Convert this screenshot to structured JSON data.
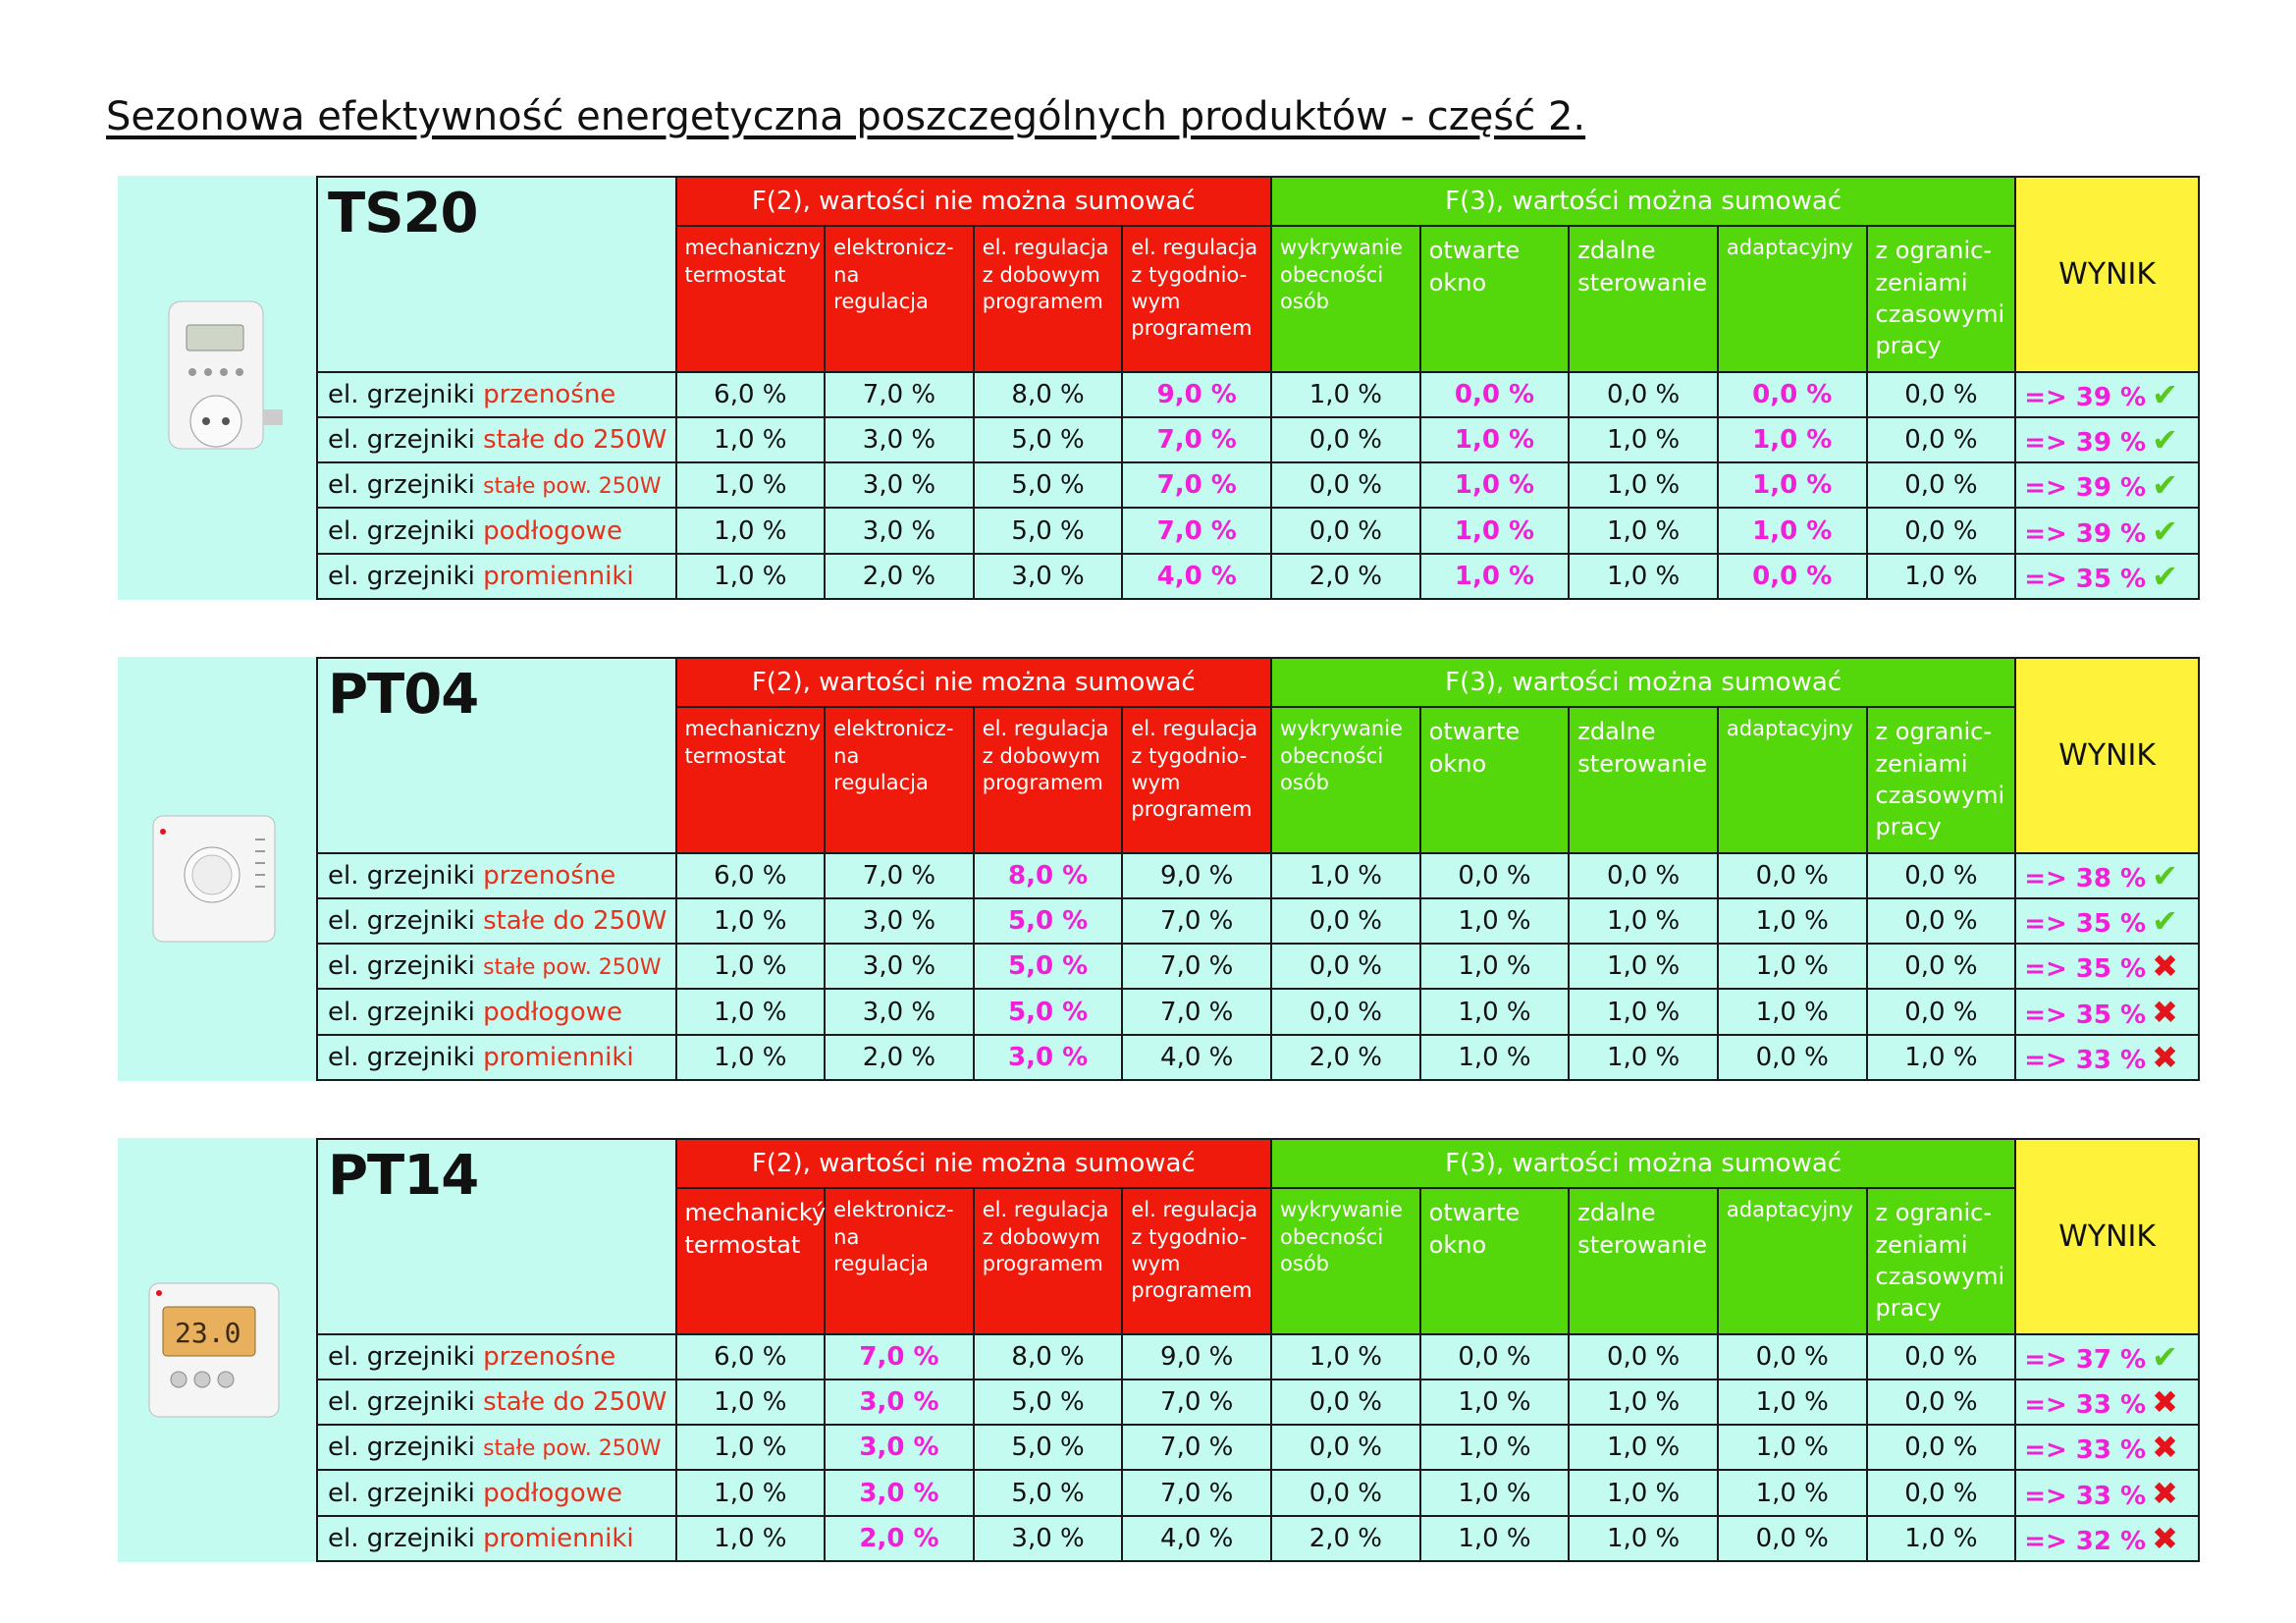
{
  "title": "Sezonowa efektywność energetyczna poszczególnych produktów - część 2.",
  "colors": {
    "f2": "#f01a0c",
    "f3": "#54d80c",
    "wynik": "#fff23a",
    "table_bg": "#c4fbf0",
    "highlight": "#f020d8"
  },
  "row_prefix": "el. grzejniki ",
  "headers": {
    "f2": "F(2), wartości nie można sumować",
    "f3": "F(3), wartości można sumować",
    "wynik": "WYNIK",
    "sub_f2_common": [
      "elektronicz-\nna\nregulacja",
      "el. regulacja\nz dobowym\nprogramem",
      "el. regulacja\nz tygodnio-\nwym\nprogramem"
    ],
    "sub_f3": [
      "wykrywanie\nobecności\nosób",
      "otwarte\nokno",
      "zdalne\nsterowanie",
      "adaptacyjny",
      "z ogranic-\nzeniami\nczasowymi\npracy"
    ]
  },
  "row_suffixes": [
    "przenośne",
    "stałe do 250W",
    "stałe pow. 250W",
    "podłogowe",
    "promienniki"
  ],
  "products": [
    {
      "name": "TS20",
      "first_subheader": "mechaniczny\ntermostat",
      "pink_cols": [
        3,
        5,
        7
      ],
      "rows": [
        {
          "values": [
            "6,0 %",
            "7,0 %",
            "8,0 %",
            "9,0 %",
            "1,0 %",
            "0,0 %",
            "0,0 %",
            "0,0 %",
            "0,0 %"
          ],
          "result": "=> 39 %",
          "ok": true
        },
        {
          "values": [
            "1,0 %",
            "3,0 %",
            "5,0 %",
            "7,0 %",
            "0,0 %",
            "1,0 %",
            "1,0 %",
            "1,0 %",
            "0,0 %"
          ],
          "result": "=> 39 %",
          "ok": true
        },
        {
          "values": [
            "1,0 %",
            "3,0 %",
            "5,0 %",
            "7,0 %",
            "0,0 %",
            "1,0 %",
            "1,0 %",
            "1,0 %",
            "0,0 %"
          ],
          "result": "=> 39 %",
          "ok": true
        },
        {
          "values": [
            "1,0 %",
            "3,0 %",
            "5,0 %",
            "7,0 %",
            "0,0 %",
            "1,0 %",
            "1,0 %",
            "1,0 %",
            "0,0 %"
          ],
          "result": "=> 39 %",
          "ok": true
        },
        {
          "values": [
            "1,0 %",
            "2,0 %",
            "3,0 %",
            "4,0 %",
            "2,0 %",
            "1,0 %",
            "1,0 %",
            "0,0 %",
            "1,0 %"
          ],
          "result": "=> 35 %",
          "ok": true
        }
      ]
    },
    {
      "name": "PT04",
      "first_subheader": "mechaniczny\ntermostat",
      "pink_cols": [
        2
      ],
      "rows": [
        {
          "values": [
            "6,0 %",
            "7,0 %",
            "8,0 %",
            "9,0 %",
            "1,0 %",
            "0,0 %",
            "0,0 %",
            "0,0 %",
            "0,0 %"
          ],
          "result": "=> 38 %",
          "ok": true
        },
        {
          "values": [
            "1,0 %",
            "3,0 %",
            "5,0 %",
            "7,0 %",
            "0,0 %",
            "1,0 %",
            "1,0 %",
            "1,0 %",
            "0,0 %"
          ],
          "result": "=> 35 %",
          "ok": true
        },
        {
          "values": [
            "1,0 %",
            "3,0 %",
            "5,0 %",
            "7,0 %",
            "0,0 %",
            "1,0 %",
            "1,0 %",
            "1,0 %",
            "0,0 %"
          ],
          "result": "=> 35 %",
          "ok": false
        },
        {
          "values": [
            "1,0 %",
            "3,0 %",
            "5,0 %",
            "7,0 %",
            "0,0 %",
            "1,0 %",
            "1,0 %",
            "1,0 %",
            "0,0 %"
          ],
          "result": "=> 35 %",
          "ok": false
        },
        {
          "values": [
            "1,0 %",
            "2,0 %",
            "3,0 %",
            "4,0 %",
            "2,0 %",
            "1,0 %",
            "1,0 %",
            "0,0 %",
            "1,0 %"
          ],
          "result": "=> 33 %",
          "ok": false
        }
      ]
    },
    {
      "name": "PT14",
      "first_subheader": "mechanický\ntermostat",
      "pink_cols": [
        1
      ],
      "rows": [
        {
          "values": [
            "6,0 %",
            "7,0 %",
            "8,0 %",
            "9,0 %",
            "1,0 %",
            "0,0 %",
            "0,0 %",
            "0,0 %",
            "0,0 %"
          ],
          "result": "=> 37 %",
          "ok": true
        },
        {
          "values": [
            "1,0 %",
            "3,0 %",
            "5,0 %",
            "7,0 %",
            "0,0 %",
            "1,0 %",
            "1,0 %",
            "1,0 %",
            "0,0 %"
          ],
          "result": "=> 33 %",
          "ok": false
        },
        {
          "values": [
            "1,0 %",
            "3,0 %",
            "5,0 %",
            "7,0 %",
            "0,0 %",
            "1,0 %",
            "1,0 %",
            "1,0 %",
            "0,0 %"
          ],
          "result": "=> 33 %",
          "ok": false
        },
        {
          "values": [
            "1,0 %",
            "3,0 %",
            "5,0 %",
            "7,0 %",
            "0,0 %",
            "1,0 %",
            "1,0 %",
            "1,0 %",
            "0,0 %"
          ],
          "result": "=> 33 %",
          "ok": false
        },
        {
          "values": [
            "1,0 %",
            "2,0 %",
            "3,0 %",
            "4,0 %",
            "2,0 %",
            "1,0 %",
            "1,0 %",
            "0,0 %",
            "1,0 %"
          ],
          "result": "=> 32 %",
          "ok": false
        }
      ]
    }
  ]
}
